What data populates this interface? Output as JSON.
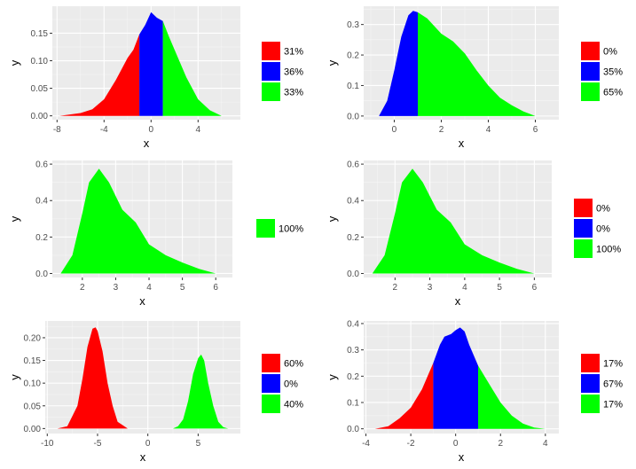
{
  "chart_data": [
    {
      "type": "area",
      "title": "",
      "xlabel": "x",
      "ylabel": "y",
      "xlim": [
        -8.4,
        7.6
      ],
      "ylim": [
        -0.007,
        0.199
      ],
      "xticks": [
        -8,
        -4,
        0,
        4
      ],
      "xticklabels": [
        "-8",
        "-4",
        "0",
        "4"
      ],
      "yticks": [
        0,
        0.05,
        0.1,
        0.15
      ],
      "yticklabels": [
        "0.00",
        "0.05",
        "0.10",
        "0.15"
      ],
      "breaks": [
        -1,
        1
      ],
      "x": [
        -7.8,
        -6,
        -5,
        -4,
        -3,
        -2,
        -1.5,
        -1,
        -0.5,
        0,
        0.5,
        1,
        1.5,
        2,
        3,
        4,
        5,
        6
      ],
      "y": [
        0.0,
        0.005,
        0.012,
        0.03,
        0.065,
        0.105,
        0.12,
        0.148,
        0.165,
        0.188,
        0.178,
        0.172,
        0.145,
        0.12,
        0.07,
        0.03,
        0.01,
        0.002
      ],
      "legend": [
        {
          "color": "#FF0000",
          "label": "31%"
        },
        {
          "color": "#0000FF",
          "label": "36%"
        },
        {
          "color": "#00FF00",
          "label": "33%"
        }
      ]
    },
    {
      "type": "area",
      "title": "",
      "xlabel": "x",
      "ylabel": "y",
      "xlim": [
        -1.3,
        7.0
      ],
      "ylim": [
        -0.012,
        0.36
      ],
      "xticks": [
        0,
        2,
        4,
        6
      ],
      "xticklabels": [
        "0",
        "2",
        "4",
        "6"
      ],
      "yticks": [
        0,
        0.1,
        0.2,
        0.3
      ],
      "yticklabels": [
        "0.0",
        "0.1",
        "0.2",
        "0.3"
      ],
      "breaks": [
        -1,
        1
      ],
      "x": [
        -0.65,
        -0.3,
        0,
        0.3,
        0.6,
        0.8,
        1,
        1.4,
        2,
        2.5,
        3,
        3.5,
        4,
        4.5,
        5,
        5.5,
        6
      ],
      "y": [
        0.0,
        0.05,
        0.15,
        0.26,
        0.33,
        0.345,
        0.34,
        0.32,
        0.27,
        0.245,
        0.205,
        0.15,
        0.1,
        0.06,
        0.035,
        0.015,
        0.002
      ],
      "legend": [
        {
          "color": "#FF0000",
          "label": "0%"
        },
        {
          "color": "#0000FF",
          "label": "35%"
        },
        {
          "color": "#00FF00",
          "label": "65%"
        }
      ]
    },
    {
      "type": "area",
      "title": "",
      "xlabel": "x",
      "ylabel": "y",
      "xlim": [
        1.1,
        6.5
      ],
      "ylim": [
        -0.022,
        0.62
      ],
      "xticks": [
        2,
        3,
        4,
        5,
        6
      ],
      "xticklabels": [
        "2",
        "3",
        "4",
        "5",
        "6"
      ],
      "yticks": [
        0,
        0.2,
        0.4,
        0.6
      ],
      "yticklabels": [
        "0.0",
        "0.2",
        "0.4",
        "0.6"
      ],
      "breaks": [
        -1,
        1
      ],
      "x": [
        1.35,
        1.7,
        2,
        2.2,
        2.5,
        2.8,
        3.2,
        3.6,
        4.0,
        4.5,
        5.0,
        5.5,
        6.0
      ],
      "y": [
        0.0,
        0.1,
        0.33,
        0.5,
        0.575,
        0.5,
        0.35,
        0.28,
        0.16,
        0.1,
        0.06,
        0.025,
        0.002
      ],
      "legend": [
        {
          "color": "#00FF00",
          "label": "100%"
        }
      ]
    },
    {
      "type": "area",
      "title": "",
      "xlabel": "x",
      "ylabel": "y",
      "xlim": [
        1.1,
        6.5
      ],
      "ylim": [
        -0.022,
        0.62
      ],
      "xticks": [
        2,
        3,
        4,
        5,
        6
      ],
      "xticklabels": [
        "2",
        "3",
        "4",
        "5",
        "6"
      ],
      "yticks": [
        0,
        0.2,
        0.4,
        0.6
      ],
      "yticklabels": [
        "0.0",
        "0.2",
        "0.4",
        "0.6"
      ],
      "breaks": [
        -1,
        1
      ],
      "x": [
        1.35,
        1.7,
        2,
        2.2,
        2.5,
        2.8,
        3.2,
        3.6,
        4.0,
        4.5,
        5.0,
        5.5,
        6.0
      ],
      "y": [
        0.0,
        0.1,
        0.33,
        0.5,
        0.575,
        0.5,
        0.35,
        0.28,
        0.16,
        0.1,
        0.06,
        0.025,
        0.002
      ],
      "legend": [
        {
          "color": "#FF0000",
          "label": "0%"
        },
        {
          "color": "#0000FF",
          "label": "0%"
        },
        {
          "color": "#00FF00",
          "label": "100%"
        }
      ]
    },
    {
      "type": "area",
      "title": "",
      "xlabel": "x",
      "ylabel": "y",
      "xlim": [
        -10.2,
        9.2
      ],
      "ylim": [
        -0.011,
        0.237
      ],
      "xticks": [
        -10,
        -5,
        0,
        5
      ],
      "xticklabels": [
        "-10",
        "-5",
        "0",
        "5"
      ],
      "yticks": [
        0,
        0.05,
        0.1,
        0.15,
        0.2
      ],
      "yticklabels": [
        "0.00",
        "0.05",
        "0.10",
        "0.15",
        "0.20"
      ],
      "breaks": [
        -1,
        1
      ],
      "x": [
        -9,
        -8,
        -7,
        -6.5,
        -6,
        -5.5,
        -5.2,
        -5,
        -4.5,
        -4,
        -3.5,
        -3,
        -2,
        2.5,
        3,
        3.5,
        4,
        4.5,
        5,
        5.3,
        5.6,
        6,
        6.5,
        7,
        7.5,
        8
      ],
      "y": [
        0.0,
        0.005,
        0.05,
        0.11,
        0.18,
        0.22,
        0.223,
        0.215,
        0.17,
        0.1,
        0.05,
        0.015,
        0.0,
        0.0,
        0.005,
        0.02,
        0.06,
        0.12,
        0.155,
        0.163,
        0.15,
        0.1,
        0.05,
        0.015,
        0.003,
        0.0
      ],
      "legend": [
        {
          "color": "#FF0000",
          "label": "60%"
        },
        {
          "color": "#0000FF",
          "label": "0%"
        },
        {
          "color": "#00FF00",
          "label": "40%"
        }
      ]
    },
    {
      "type": "area",
      "title": "",
      "xlabel": "x",
      "ylabel": "y",
      "xlim": [
        -4.1,
        4.6
      ],
      "ylim": [
        -0.018,
        0.41
      ],
      "xticks": [
        -4,
        -2,
        0,
        2,
        4
      ],
      "xticklabels": [
        "-4",
        "-2",
        "0",
        "2",
        "4"
      ],
      "yticks": [
        0,
        0.1,
        0.2,
        0.3,
        0.4
      ],
      "yticklabels": [
        "0.0",
        "0.1",
        "0.2",
        "0.3",
        "0.4"
      ],
      "breaks": [
        -1,
        1
      ],
      "x": [
        -3.6,
        -3,
        -2.5,
        -2,
        -1.5,
        -1,
        -0.7,
        -0.5,
        -0.2,
        0,
        0.2,
        0.4,
        0.6,
        1,
        1.5,
        2,
        2.5,
        3,
        3.5,
        4
      ],
      "y": [
        0.0,
        0.01,
        0.04,
        0.08,
        0.15,
        0.25,
        0.32,
        0.35,
        0.36,
        0.375,
        0.385,
        0.37,
        0.32,
        0.24,
        0.17,
        0.1,
        0.05,
        0.02,
        0.005,
        0.0
      ],
      "legend": [
        {
          "color": "#FF0000",
          "label": "17%"
        },
        {
          "color": "#0000FF",
          "label": "67%"
        },
        {
          "color": "#00FF00",
          "label": "17%"
        }
      ]
    }
  ]
}
